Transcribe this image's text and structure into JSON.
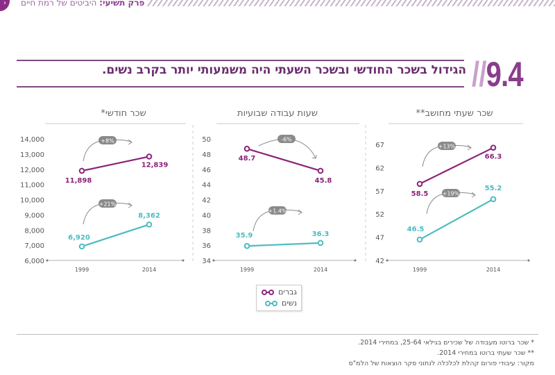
{
  "header": {
    "chapter_label": "פרק תשיעי:",
    "chapter_title": "היביטים של רמת חיים",
    "nav_icon": "chevron-right-icon"
  },
  "figure": {
    "number": "9.4",
    "title": "הגידול בשכר החודשי ובשכר השעתי היה משמעותי יותר בקרב נשים."
  },
  "legend": {
    "items": [
      {
        "label": "גברים",
        "color": "#8b2379"
      },
      {
        "label": "נשים",
        "color": "#4bbcc0"
      }
    ]
  },
  "notes": {
    "note1": "* שכר ברוטו מעבודה של שכירים בגילאי 25-64, במחירי 2014.",
    "note2": "** שכר שעתי ברוטו במחירי 2014.",
    "source": "מקור: עיבודי פורום קהלת לכלכלה לנתוני סקר הוצאות של הלמ\"ס"
  },
  "chart_data": [
    {
      "type": "line",
      "title": "שכר חודשי*",
      "x": [
        "1999",
        "2014"
      ],
      "ylim": [
        6000,
        14000
      ],
      "yticks": [
        "6,000",
        "7,000",
        "8,000",
        "9,000",
        "10,000",
        "11,000",
        "12,000",
        "13,000",
        "14,000"
      ],
      "ytick_values": [
        6000,
        7000,
        8000,
        9000,
        10000,
        11000,
        12000,
        13000,
        14000
      ],
      "series": [
        {
          "name": "גברים",
          "values": [
            11898,
            12839
          ],
          "labels": [
            "11,898",
            "12,839"
          ],
          "change": "+8%"
        },
        {
          "name": "נשים",
          "values": [
            6920,
            8362
          ],
          "labels": [
            "6,920",
            "8,362"
          ],
          "change": "+21%"
        }
      ]
    },
    {
      "type": "line",
      "title": "שעות עבודה שבועיות",
      "x": [
        "1999",
        "2014"
      ],
      "ylim": [
        34,
        50
      ],
      "yticks": [
        "34",
        "36",
        "38",
        "40",
        "42",
        "44",
        "46",
        "48",
        "50"
      ],
      "ytick_values": [
        34,
        36,
        38,
        40,
        42,
        44,
        46,
        48,
        50
      ],
      "series": [
        {
          "name": "גברים",
          "values": [
            48.7,
            45.8
          ],
          "labels": [
            "48.7",
            "45.8"
          ],
          "change": "-6%"
        },
        {
          "name": "נשים",
          "values": [
            35.9,
            36.3
          ],
          "labels": [
            "35.9",
            "36.3"
          ],
          "change": "+1.4%"
        }
      ]
    },
    {
      "type": "line",
      "title": "שכר שעתי מחושב**",
      "x": [
        "1999",
        "2014"
      ],
      "ylim": [
        42,
        67
      ],
      "yticks": [
        "42",
        "47",
        "52",
        "57",
        "62",
        "67"
      ],
      "ytick_values": [
        42,
        47,
        52,
        57,
        62,
        67
      ],
      "series": [
        {
          "name": "גברים",
          "values": [
            58.5,
            66.3
          ],
          "labels": [
            "58.5",
            "66.3"
          ],
          "change": "+13%"
        },
        {
          "name": "נשים",
          "values": [
            46.5,
            55.2
          ],
          "labels": [
            "46.5",
            "55.2"
          ],
          "change": "+19%"
        }
      ]
    }
  ]
}
